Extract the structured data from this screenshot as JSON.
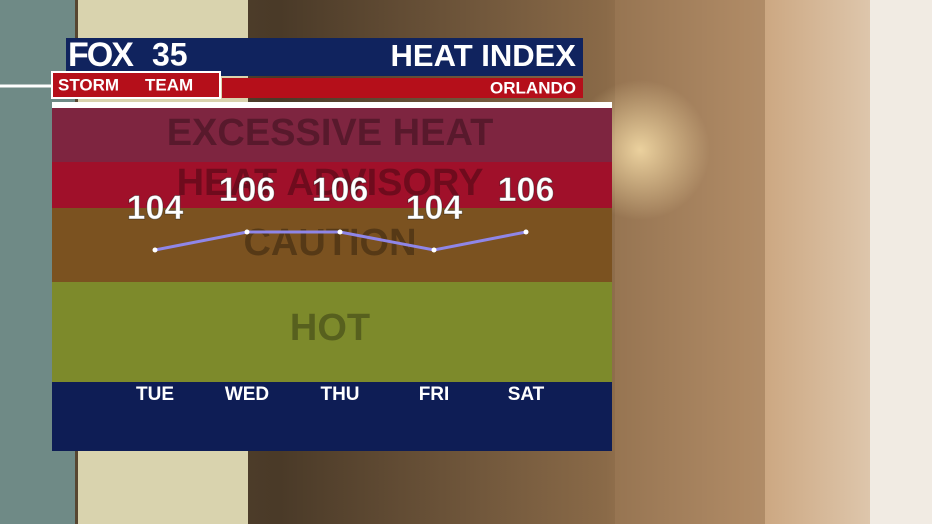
{
  "chart_data": {
    "type": "line",
    "title": "HEAT INDEX",
    "subtitle": "ORLANDO",
    "logo": {
      "brand": "FOX",
      "channel": "35",
      "team": "STORM",
      "team_end": "TEAM"
    },
    "bands": [
      "EXCESSIVE HEAT",
      "HEAT ADVISORY",
      "CAUTION",
      "HOT"
    ],
    "categories": [
      "TUE",
      "WED",
      "THU",
      "FRI",
      "SAT"
    ],
    "values": [
      104,
      106,
      106,
      104,
      106
    ],
    "color": "#8f86e8",
    "ylim": [
      90,
      120
    ]
  }
}
